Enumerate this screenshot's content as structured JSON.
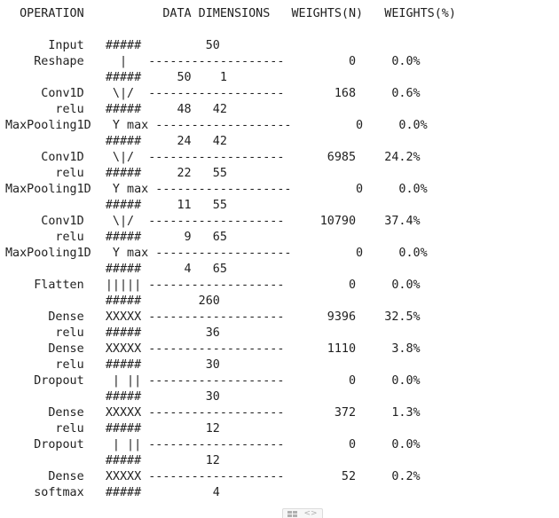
{
  "summary": {
    "lines": [
      "  OPERATION           DATA DIMENSIONS   WEIGHTS(N)   WEIGHTS(%)",
      "",
      "      Input   #####         50",
      "    Reshape     |   -------------------         0     0.0%",
      "              #####     50    1",
      "     Conv1D    \\|/  -------------------       168     0.6%",
      "       relu   #####     48   42",
      "MaxPooling1D   Y max -------------------         0     0.0%",
      "              #####     24   42",
      "     Conv1D    \\|/  -------------------      6985    24.2%",
      "       relu   #####     22   55",
      "MaxPooling1D   Y max -------------------         0     0.0%",
      "              #####     11   55",
      "     Conv1D    \\|/  -------------------     10790    37.4%",
      "       relu   #####      9   65",
      "MaxPooling1D   Y max -------------------         0     0.0%",
      "              #####      4   65",
      "    Flatten   ||||| -------------------         0     0.0%",
      "              #####        260",
      "      Dense   XXXXX -------------------      9396    32.5%",
      "       relu   #####         36",
      "      Dense   XXXXX -------------------      1110     3.8%",
      "       relu   #####         30",
      "    Dropout    | || -------------------         0     0.0%",
      "              #####         30",
      "      Dense   XXXXX -------------------       372     1.3%",
      "       relu   #####         12",
      "    Dropout    | || -------------------         0     0.0%",
      "              #####         12",
      "      Dense   XXXXX -------------------        52     0.2%",
      "    softmax   #####          4"
    ]
  },
  "toolbar": {
    "icons": [
      "table-icon",
      "code-icon"
    ],
    "code_glyph": "<>"
  }
}
